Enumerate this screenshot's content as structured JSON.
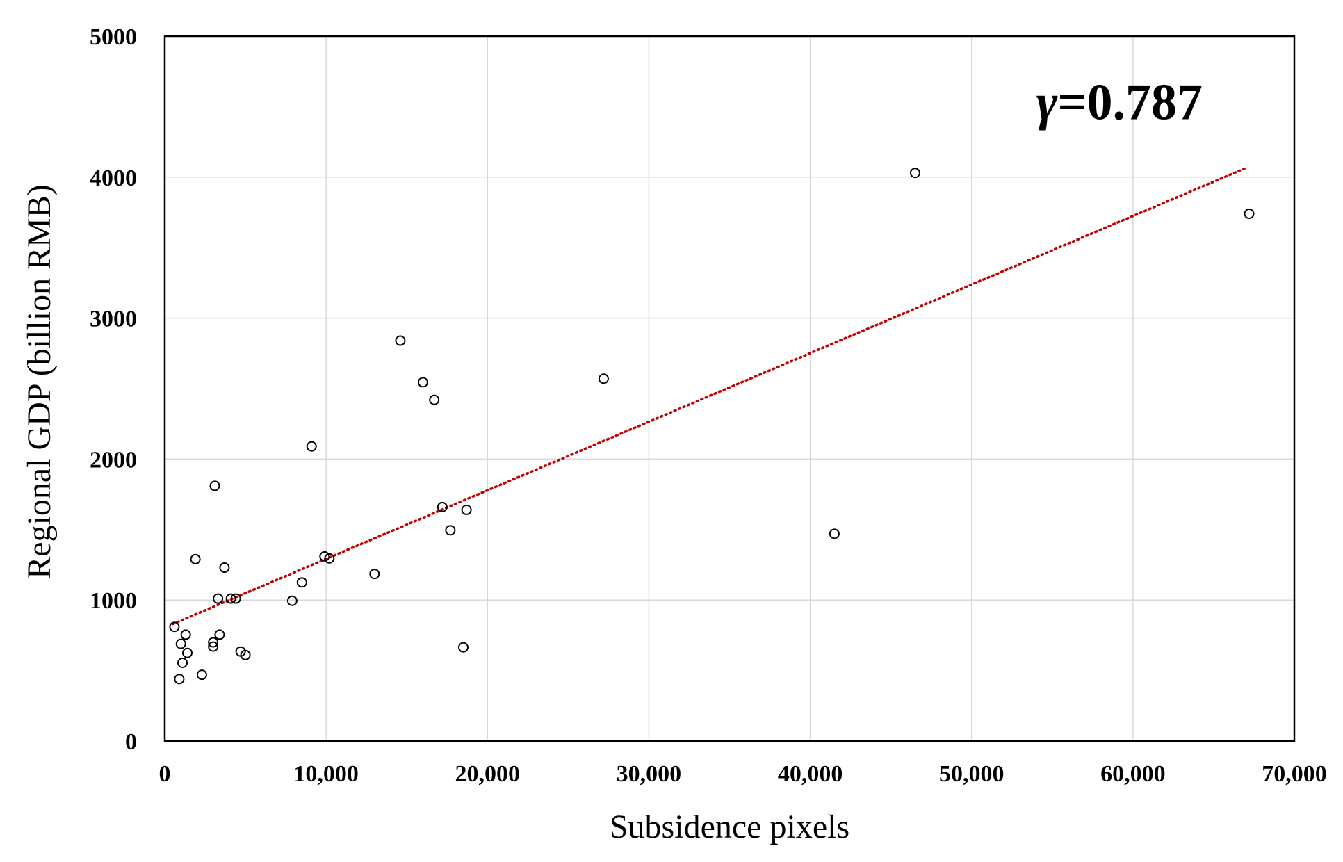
{
  "chart_data": {
    "type": "scatter",
    "title": "",
    "xlabel": "Subsidence pixels",
    "ylabel": "Regional GDP (billion RMB)",
    "xlim": [
      0,
      70000
    ],
    "ylim": [
      0,
      5000
    ],
    "x_ticks": [
      0,
      10000,
      20000,
      30000,
      40000,
      50000,
      60000,
      70000
    ],
    "x_tick_labels": [
      "0",
      "10,000",
      "20,000",
      "30,000",
      "40,000",
      "50,000",
      "60,000",
      "70,000"
    ],
    "y_ticks": [
      0,
      1000,
      2000,
      3000,
      4000,
      5000
    ],
    "y_tick_labels": [
      "0",
      "1000",
      "2000",
      "3000",
      "4000",
      "5000"
    ],
    "grid": true,
    "legend": "none",
    "series": [
      {
        "marker": "open-circle",
        "color": "#000000",
        "points": [
          {
            "x": 600,
            "y": 810
          },
          {
            "x": 900,
            "y": 440
          },
          {
            "x": 1000,
            "y": 690
          },
          {
            "x": 1100,
            "y": 555
          },
          {
            "x": 1300,
            "y": 755
          },
          {
            "x": 1400,
            "y": 625
          },
          {
            "x": 1900,
            "y": 1290
          },
          {
            "x": 2300,
            "y": 470
          },
          {
            "x": 3000,
            "y": 700
          },
          {
            "x": 3000,
            "y": 670
          },
          {
            "x": 3100,
            "y": 1810
          },
          {
            "x": 3300,
            "y": 1010
          },
          {
            "x": 3400,
            "y": 755
          },
          {
            "x": 3700,
            "y": 1230
          },
          {
            "x": 4100,
            "y": 1010
          },
          {
            "x": 4400,
            "y": 1010
          },
          {
            "x": 4700,
            "y": 635
          },
          {
            "x": 5000,
            "y": 610
          },
          {
            "x": 7900,
            "y": 995
          },
          {
            "x": 8500,
            "y": 1125
          },
          {
            "x": 9100,
            "y": 2090
          },
          {
            "x": 9900,
            "y": 1310
          },
          {
            "x": 10200,
            "y": 1295
          },
          {
            "x": 13000,
            "y": 1185
          },
          {
            "x": 14600,
            "y": 2840
          },
          {
            "x": 16000,
            "y": 2545
          },
          {
            "x": 16700,
            "y": 2420
          },
          {
            "x": 17200,
            "y": 1660
          },
          {
            "x": 17700,
            "y": 1495
          },
          {
            "x": 18500,
            "y": 665
          },
          {
            "x": 18700,
            "y": 1640
          },
          {
            "x": 27200,
            "y": 2570
          },
          {
            "x": 41500,
            "y": 1470
          },
          {
            "x": 46500,
            "y": 4030
          },
          {
            "x": 67200,
            "y": 3740
          }
        ]
      }
    ],
    "trendline": {
      "style": "dotted",
      "color": "#c00000",
      "x": [
        500,
        66900
      ],
      "y": [
        830,
        4060
      ]
    },
    "annotation": {
      "symbol": "γ",
      "text": "=0.787",
      "x": 54000,
      "y": 4410
    }
  }
}
